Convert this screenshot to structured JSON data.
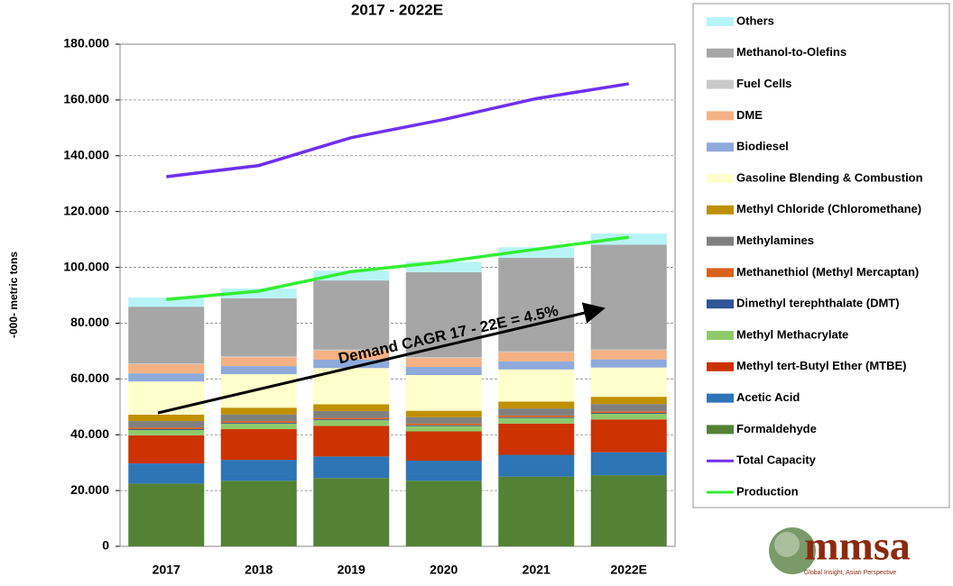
{
  "chart_data": {
    "type": "bar",
    "stacked": true,
    "title": "2017 - 2022E",
    "y_label": "-000- metric tons",
    "annotation": "Demand CAGR 17 - 22E = 4.5%",
    "categories": [
      "2017",
      "2018",
      "2019",
      "2020",
      "2021",
      "2022E"
    ],
    "ylim": [
      0,
      180
    ],
    "yticks": [
      0,
      {
        "value": 20,
        "label": "20.000"
      },
      {
        "value": 40,
        "label": "40.000"
      },
      {
        "value": 60,
        "label": "60.000"
      },
      {
        "value": 80,
        "label": "80.000"
      },
      {
        "value": 100,
        "label": "100.000"
      },
      {
        "value": 120,
        "label": "120.000"
      },
      {
        "value": 140,
        "label": "140.000"
      },
      {
        "value": 160,
        "label": "160.000"
      },
      {
        "value": 180,
        "label": "180.000"
      }
    ],
    "grid": true,
    "legend": "right",
    "series": [
      {
        "name": "Formaldehyde",
        "type": "bar",
        "color": "#548235",
        "values": [
          22.5,
          23.5,
          24.5,
          23.5,
          25,
          25.5
        ]
      },
      {
        "name": "Acetic Acid",
        "type": "bar",
        "color": "#2e75b6",
        "values": [
          7.2,
          7.5,
          7.7,
          7.2,
          7.8,
          8.2
        ]
      },
      {
        "name": "Methyl tert-Butyl Ether (MTBE)",
        "type": "bar",
        "color": "#cc3300",
        "values": [
          10.1,
          11,
          11,
          10.5,
          11.2,
          11.8
        ]
      },
      {
        "name": "Methyl Methacrylate",
        "type": "bar",
        "color": "#8fca6a",
        "values": [
          1.9,
          2,
          2,
          1.9,
          2,
          2
        ]
      },
      {
        "name": "Dimethyl terephthalate (DMT)",
        "type": "bar",
        "color": "#2f5597",
        "values": [
          0.3,
          0.3,
          0.3,
          0.3,
          0.3,
          0.3
        ]
      },
      {
        "name": "Methanethiol (Methyl Mercaptan)",
        "type": "bar",
        "color": "#d9621a",
        "values": [
          0.6,
          0.6,
          0.6,
          0.6,
          0.6,
          0.6
        ]
      },
      {
        "name": "Methylamines",
        "type": "bar",
        "color": "#808080",
        "values": [
          2.3,
          2.4,
          2.4,
          2.3,
          2.5,
          2.6
        ]
      },
      {
        "name": "Methyl Chloride (Chloromethane)",
        "type": "bar",
        "color": "#bf9000",
        "values": [
          2.3,
          2.4,
          2.4,
          2.3,
          2.5,
          2.6
        ]
      },
      {
        "name": "Gasoline Blending & Combustion",
        "type": "bar",
        "color": "#ffffcc",
        "values": [
          11.9,
          12,
          13,
          12.8,
          11.5,
          10.5
        ]
      },
      {
        "name": "Biodiesel",
        "type": "bar",
        "color": "#8eaadb",
        "values": [
          2.9,
          2.9,
          3,
          2.9,
          2.9,
          2.9
        ]
      },
      {
        "name": "DME",
        "type": "bar",
        "color": "#f4b183",
        "values": [
          3.3,
          3.2,
          3.3,
          3.2,
          3.3,
          3.3
        ]
      },
      {
        "name": "Fuel Cells",
        "type": "bar",
        "color": "#c9c9c9",
        "values": [
          0.3,
          0.3,
          0.3,
          0.3,
          0.3,
          0.3
        ]
      },
      {
        "name": "Methanol-to-Olefins",
        "type": "bar",
        "color": "#a6a6a6",
        "values": [
          20.3,
          20.8,
          24.8,
          30.5,
          33.5,
          37.5
        ]
      },
      {
        "name": "Others",
        "type": "bar",
        "color": "#b7f4f7",
        "values": [
          3.3,
          3.5,
          3.5,
          3.7,
          3.8,
          4
        ]
      },
      {
        "name": "Total Capacity",
        "type": "line",
        "color": "#7030f0",
        "values": [
          132.5,
          136.5,
          146.5,
          153,
          160.5,
          165.8
        ]
      },
      {
        "name": "Production",
        "type": "line",
        "color": "#33ee33",
        "values": [
          88.5,
          91.5,
          98.5,
          102,
          106.5,
          110.8
        ]
      }
    ]
  },
  "logo": {
    "name": "mmsa",
    "tagline": "Global Insight, Asian Perspective"
  }
}
